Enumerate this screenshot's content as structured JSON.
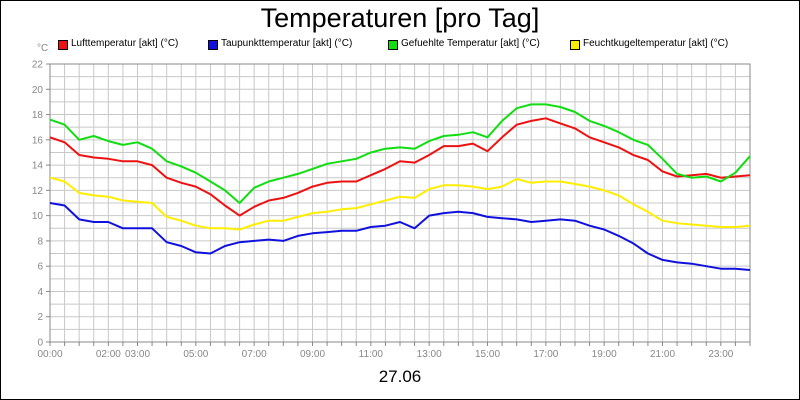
{
  "chart_data": {
    "type": "line",
    "title": "Temperaturen [pro Tag]",
    "unit": "°C",
    "date": "27.06",
    "ylim": [
      0,
      22
    ],
    "y_ticks": [
      "0",
      "2",
      "4",
      "6",
      "8",
      "10",
      "12",
      "14",
      "16",
      "18",
      "20",
      "22"
    ],
    "x_ticks": [
      "00:00",
      "02:00",
      "03:00",
      "05:00",
      "07:00",
      "09:00",
      "11:00",
      "13:00",
      "15:00",
      "17:00",
      "19:00",
      "21:00",
      "23:00"
    ],
    "x_tick_hours": [
      0,
      2,
      3,
      5,
      7,
      9,
      11,
      13,
      15,
      17,
      19,
      21,
      23
    ],
    "xlim_hours": [
      0,
      24
    ],
    "grid": true,
    "legend": "top",
    "series": [
      {
        "name": "Lufttemperatur [akt] (°C)",
        "color": "#ee1111",
        "x": [
          0,
          0.5,
          1,
          1.5,
          2,
          2.5,
          3,
          3.5,
          4,
          4.5,
          5,
          5.5,
          6,
          6.5,
          7,
          7.5,
          8,
          8.5,
          9,
          9.5,
          10,
          10.5,
          11,
          11.5,
          12,
          12.5,
          13,
          13.5,
          14,
          14.5,
          15,
          15.5,
          16,
          16.5,
          17,
          17.5,
          18,
          18.5,
          19,
          19.5,
          20,
          20.5,
          21,
          21.5,
          22,
          22.5,
          23,
          23.5,
          24
        ],
        "values": [
          16.2,
          15.8,
          14.8,
          14.6,
          14.5,
          14.3,
          14.3,
          14.0,
          13.0,
          12.6,
          12.3,
          11.7,
          10.8,
          10.0,
          10.7,
          11.2,
          11.4,
          11.8,
          12.3,
          12.6,
          12.7,
          12.7,
          13.2,
          13.7,
          14.3,
          14.2,
          14.8,
          15.5,
          15.5,
          15.7,
          15.1,
          16.2,
          17.2,
          17.5,
          17.7,
          17.3,
          16.9,
          16.2,
          15.8,
          15.4,
          14.8,
          14.4,
          13.5,
          13.1,
          13.2,
          13.3,
          13.0,
          13.1,
          13.2
        ]
      },
      {
        "name": "Taupunkttemperatur [akt] (°C)",
        "color": "#1111dd",
        "x": [
          0,
          0.5,
          1,
          1.5,
          2,
          2.5,
          3,
          3.5,
          4,
          4.5,
          5,
          5.5,
          6,
          6.5,
          7,
          7.5,
          8,
          8.5,
          9,
          9.5,
          10,
          10.5,
          11,
          11.5,
          12,
          12.5,
          13,
          13.5,
          14,
          14.5,
          15,
          15.5,
          16,
          16.5,
          17,
          17.5,
          18,
          18.5,
          19,
          19.5,
          20,
          20.5,
          21,
          21.5,
          22,
          22.5,
          23,
          23.5,
          24
        ],
        "values": [
          11.0,
          10.8,
          9.7,
          9.5,
          9.5,
          9.0,
          9.0,
          9.0,
          7.9,
          7.6,
          7.1,
          7.0,
          7.6,
          7.9,
          8.0,
          8.1,
          8.0,
          8.4,
          8.6,
          8.7,
          8.8,
          8.8,
          9.1,
          9.2,
          9.5,
          9.0,
          10.0,
          10.2,
          10.3,
          10.2,
          9.9,
          9.8,
          9.7,
          9.5,
          9.6,
          9.7,
          9.6,
          9.2,
          8.9,
          8.4,
          7.8,
          7.0,
          6.5,
          6.3,
          6.2,
          6.0,
          5.8,
          5.8,
          5.7
        ]
      },
      {
        "name": "Gefuehlte Temperatur [akt] (°C)",
        "color": "#11dd11",
        "x": [
          0,
          0.5,
          1,
          1.5,
          2,
          2.5,
          3,
          3.5,
          4,
          4.5,
          5,
          5.5,
          6,
          6.5,
          7,
          7.5,
          8,
          8.5,
          9,
          9.5,
          10,
          10.5,
          11,
          11.5,
          12,
          12.5,
          13,
          13.5,
          14,
          14.5,
          15,
          15.5,
          16,
          16.5,
          17,
          17.5,
          18,
          18.5,
          19,
          19.5,
          20,
          20.5,
          21,
          21.5,
          22,
          22.5,
          23,
          23.5,
          24
        ],
        "values": [
          17.6,
          17.2,
          16.0,
          16.3,
          15.9,
          15.6,
          15.8,
          15.3,
          14.3,
          13.9,
          13.4,
          12.7,
          12.0,
          11.0,
          12.2,
          12.7,
          13.0,
          13.3,
          13.7,
          14.1,
          14.3,
          14.5,
          15.0,
          15.3,
          15.4,
          15.3,
          15.9,
          16.3,
          16.4,
          16.6,
          16.2,
          17.5,
          18.5,
          18.8,
          18.8,
          18.6,
          18.2,
          17.5,
          17.1,
          16.6,
          16.0,
          15.6,
          14.5,
          13.3,
          13.0,
          13.1,
          12.7,
          13.4,
          14.7
        ]
      },
      {
        "name": "Feuchtkugeltemperatur [akt] (°C)",
        "color": "#ffee00",
        "x": [
          0,
          0.5,
          1,
          1.5,
          2,
          2.5,
          3,
          3.5,
          4,
          4.5,
          5,
          5.5,
          6,
          6.5,
          7,
          7.5,
          8,
          8.5,
          9,
          9.5,
          10,
          10.5,
          11,
          11.5,
          12,
          12.5,
          13,
          13.5,
          14,
          14.5,
          15,
          15.5,
          16,
          16.5,
          17,
          17.5,
          18,
          18.5,
          19,
          19.5,
          20,
          20.5,
          21,
          21.5,
          22,
          22.5,
          23,
          23.5,
          24
        ],
        "values": [
          13.0,
          12.7,
          11.8,
          11.6,
          11.5,
          11.2,
          11.1,
          11.0,
          9.9,
          9.6,
          9.2,
          9.0,
          9.0,
          8.9,
          9.3,
          9.6,
          9.6,
          9.9,
          10.2,
          10.3,
          10.5,
          10.6,
          10.9,
          11.2,
          11.5,
          11.4,
          12.1,
          12.4,
          12.4,
          12.3,
          12.1,
          12.3,
          12.9,
          12.6,
          12.7,
          12.7,
          12.5,
          12.3,
          12.0,
          11.6,
          10.9,
          10.3,
          9.6,
          9.4,
          9.3,
          9.2,
          9.1,
          9.1,
          9.2
        ]
      }
    ]
  }
}
